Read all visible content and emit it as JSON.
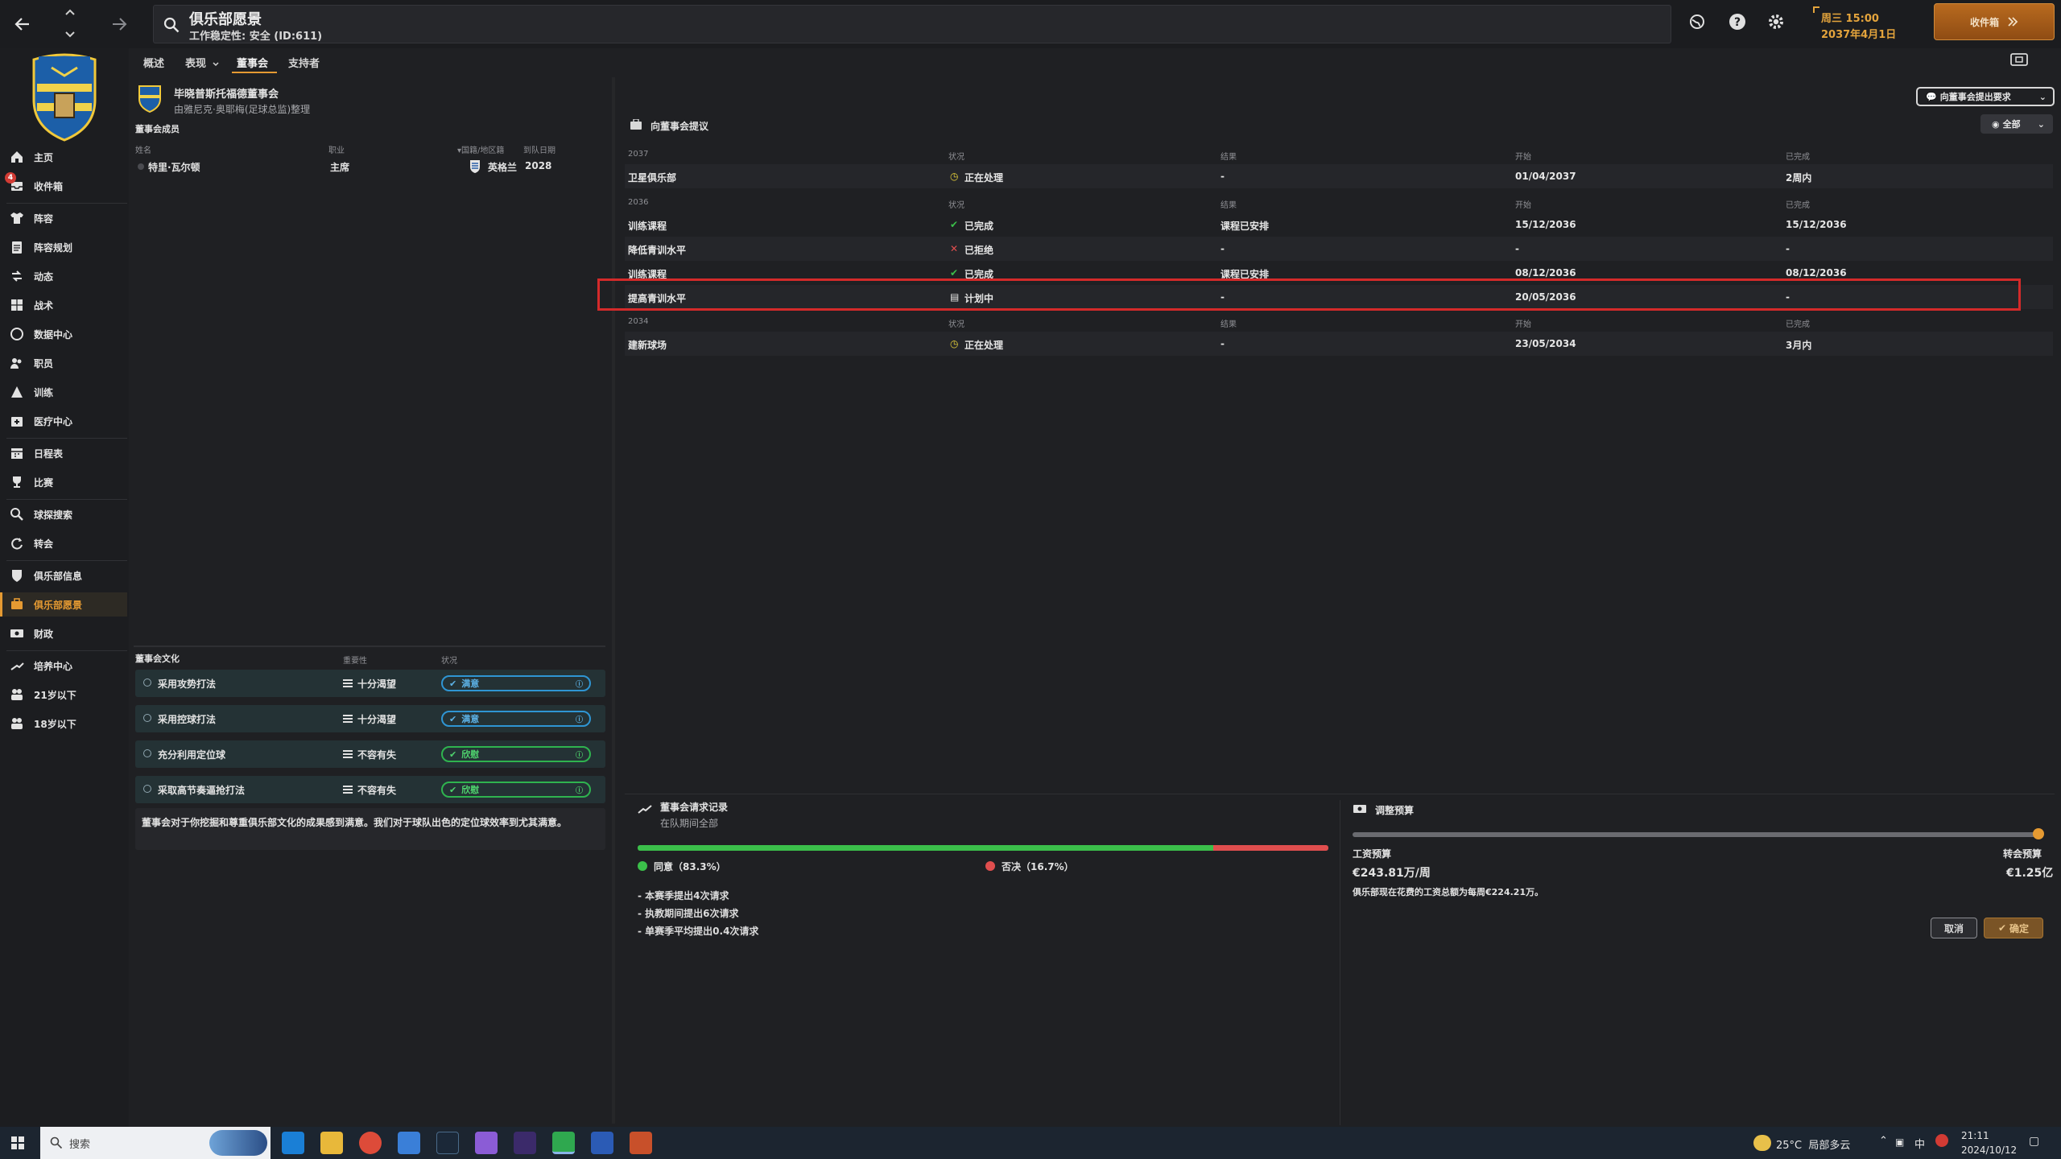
{
  "header": {
    "title": "俱乐部愿景",
    "subtitle": "工作稳定性: 安全 (ID:611)",
    "continue_label": "收件箱",
    "date_line1": "周三 15:00",
    "date_line2": "2037年4月1日"
  },
  "tabs": [
    {
      "label": "概述"
    },
    {
      "label": "表现"
    },
    {
      "label": "董事会"
    },
    {
      "label": "支持者"
    }
  ],
  "sidebar": {
    "inbox_badge": "4",
    "items": [
      {
        "label": "主页",
        "icon": "home-icon"
      },
      {
        "label": "收件箱",
        "icon": "inbox-icon"
      },
      {
        "label": "阵容",
        "icon": "shirt-icon"
      },
      {
        "label": "阵容规划",
        "icon": "clipboard-icon"
      },
      {
        "label": "动态",
        "icon": "dynamics-icon"
      },
      {
        "label": "战术",
        "icon": "tactics-icon"
      },
      {
        "label": "数据中心",
        "icon": "data-icon"
      },
      {
        "label": "职员",
        "icon": "staff-icon"
      },
      {
        "label": "训练",
        "icon": "training-icon"
      },
      {
        "label": "医疗中心",
        "icon": "medical-icon"
      },
      {
        "label": "日程表",
        "icon": "calendar-icon"
      },
      {
        "label": "比赛",
        "icon": "trophy-icon"
      },
      {
        "label": "球探搜索",
        "icon": "search-icon"
      },
      {
        "label": "转会",
        "icon": "transfer-icon"
      },
      {
        "label": "俱乐部信息",
        "icon": "shield-icon"
      },
      {
        "label": "俱乐部愿景",
        "icon": "vision-icon"
      },
      {
        "label": "财政",
        "icon": "finance-icon"
      },
      {
        "label": "培养中心",
        "icon": "development-icon"
      },
      {
        "label": "21岁以下",
        "icon": "u21-icon"
      },
      {
        "label": "18岁以下",
        "icon": "u18-icon"
      }
    ]
  },
  "board": {
    "name": "毕晓普斯托福德董事会",
    "managed_by": "由雅尼克·奥耶梅(足球总监)整理",
    "members_title": "董事会成员",
    "columns": [
      "姓名",
      "职业",
      "国籍/地区籍",
      "到队日期"
    ],
    "members": [
      {
        "name": "特里·瓦尔顿",
        "role": "主席",
        "nation": "英格兰",
        "since": "2028"
      }
    ]
  },
  "culture": {
    "title": "董事会文化",
    "columns": [
      "重要性",
      "状况"
    ],
    "rows": [
      {
        "label": "采用攻势打法",
        "importance": "十分渴望",
        "status": "满意",
        "color": "blue"
      },
      {
        "label": "采用控球打法",
        "importance": "十分渴望",
        "status": "满意",
        "color": "blue"
      },
      {
        "label": "充分利用定位球",
        "importance": "不容有失",
        "status": "欣慰",
        "color": "green"
      },
      {
        "label": "采取高节奏逼抢打法",
        "importance": "不容有失",
        "status": "欣慰",
        "color": "green"
      }
    ],
    "summary": "董事会对于你挖掘和尊重俱乐部文化的成果感到满意。我们对于球队出色的定位球效率到尤其满意。"
  },
  "requests": {
    "title": "向董事会提议",
    "make_request_label": "向董事会提出要求",
    "filter_label": "全部",
    "columns": [
      "状况",
      "结果",
      "开始",
      "已完成"
    ],
    "groups": [
      {
        "year": "2037",
        "rows": [
          {
            "name": "卫星俱乐部",
            "status": "正在处理",
            "status_icon": "clock-icon",
            "result": "-",
            "start": "01/04/2037",
            "done": "2周内"
          }
        ]
      },
      {
        "year": "2036",
        "rows": [
          {
            "name": "训练课程",
            "status": "已完成",
            "status_icon": "check-icon",
            "result": "课程已安排",
            "start": "15/12/2036",
            "done": "15/12/2036"
          },
          {
            "name": "降低青训水平",
            "status": "已拒绝",
            "status_icon": "cross-icon",
            "result": "-",
            "start": "-",
            "done": "-"
          },
          {
            "name": "训练课程",
            "status": "已完成",
            "status_icon": "check-icon",
            "result": "课程已安排",
            "start": "08/12/2036",
            "done": "08/12/2036"
          },
          {
            "name": "提高青训水平",
            "status": "计划中",
            "status_icon": "doc-icon",
            "result": "-",
            "start": "20/05/2036",
            "done": "-"
          }
        ]
      },
      {
        "year": "2034",
        "rows": [
          {
            "name": "建新球场",
            "status": "正在处理",
            "status_icon": "clock-icon",
            "result": "-",
            "start": "23/05/2034",
            "done": "3月内"
          }
        ]
      }
    ]
  },
  "request_history": {
    "title": "董事会请求记录",
    "subtitle": "在队期间全部",
    "approved_label": "同意（83.3%）",
    "rejected_label": "否决（16.7%）",
    "approved_ratio": 0.833,
    "stats": [
      "- 本赛季提出4次请求",
      "- 执教期间提出6次请求",
      "- 单赛季平均提出0.4次请求"
    ]
  },
  "budget": {
    "title": "调整预算",
    "wage_label": "工资预算",
    "transfer_label": "转会预算",
    "wage_value": "€243.81万/周",
    "transfer_value": "€1.25亿",
    "note": "俱乐部现在花费的工资总额为每周€224.21万。",
    "slider_ratio": 1.0,
    "cancel_label": "取消",
    "confirm_label": "确定"
  },
  "taskbar": {
    "search_placeholder": "搜索",
    "weather": "25°C  局部多云",
    "ime": "中",
    "time": "21:11",
    "date": "2024/10/12"
  },
  "colors": {
    "accent": "#e59a32",
    "highlight": "#d42a2a",
    "approve": "#3bbf4a",
    "reject": "#e04e4e"
  }
}
